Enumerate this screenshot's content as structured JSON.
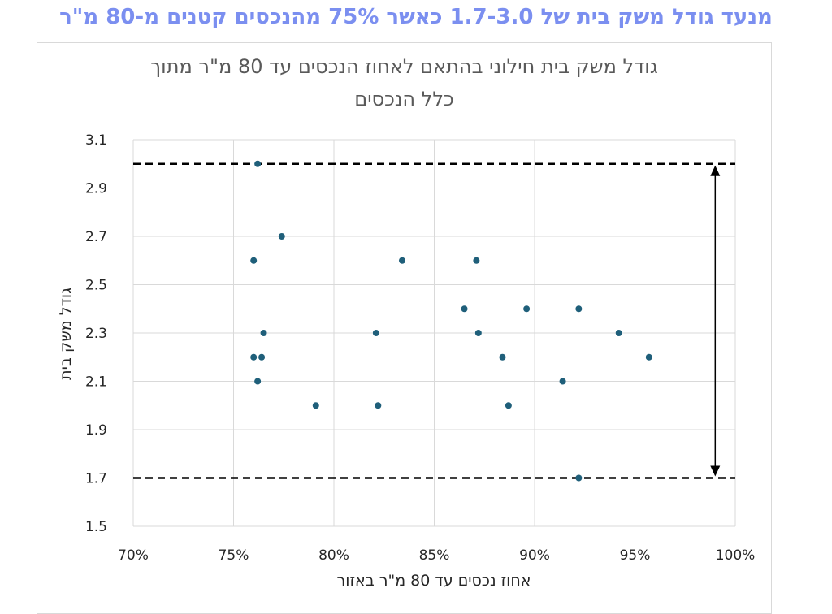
{
  "headline": "מנעד גודל משק בית של 1.7-3.0 כאשר 75% מהנכסים קטנים מ-80 מ\"ר",
  "chart_data": {
    "type": "scatter",
    "title_line1": "גודל משק בית חילוני בהתאם לאחוז הנכסים עד 80 מ\"ר מתוך",
    "title_line2": "כלל הנכסים",
    "xlabel": "אחוז נכסים עד 80 מ\"ר באזור",
    "ylabel": "גודל משק בית",
    "xlim": [
      0.7,
      1.0
    ],
    "ylim": [
      1.5,
      3.1
    ],
    "x_ticks": [
      0.7,
      0.75,
      0.8,
      0.85,
      0.9,
      0.95,
      1.0
    ],
    "x_tick_labels": [
      "70%",
      "75%",
      "80%",
      "85%",
      "90%",
      "95%",
      "100%"
    ],
    "y_ticks": [
      1.5,
      1.7,
      1.9,
      2.1,
      2.3,
      2.5,
      2.7,
      2.9,
      3.1
    ],
    "y_tick_labels": [
      "1.5",
      "1.7",
      "1.9",
      "2.1",
      "2.3",
      "2.5",
      "2.7",
      "2.9",
      "3.1"
    ],
    "grid": true,
    "point_color": "#1f5f7a",
    "reference_lines": [
      3.0,
      1.7
    ],
    "range_arrow": {
      "x": 0.99,
      "from": 3.0,
      "to": 1.7
    },
    "points": [
      {
        "x": 0.762,
        "y": 3.0
      },
      {
        "x": 0.774,
        "y": 2.7
      },
      {
        "x": 0.76,
        "y": 2.6
      },
      {
        "x": 0.834,
        "y": 2.6
      },
      {
        "x": 0.871,
        "y": 2.6
      },
      {
        "x": 0.865,
        "y": 2.4
      },
      {
        "x": 0.896,
        "y": 2.4
      },
      {
        "x": 0.922,
        "y": 2.4
      },
      {
        "x": 0.765,
        "y": 2.3
      },
      {
        "x": 0.821,
        "y": 2.3
      },
      {
        "x": 0.872,
        "y": 2.3
      },
      {
        "x": 0.942,
        "y": 2.3
      },
      {
        "x": 0.76,
        "y": 2.2
      },
      {
        "x": 0.764,
        "y": 2.2
      },
      {
        "x": 0.884,
        "y": 2.2
      },
      {
        "x": 0.957,
        "y": 2.2
      },
      {
        "x": 0.762,
        "y": 2.1
      },
      {
        "x": 0.914,
        "y": 2.1
      },
      {
        "x": 0.791,
        "y": 2.0
      },
      {
        "x": 0.822,
        "y": 2.0
      },
      {
        "x": 0.887,
        "y": 2.0
      },
      {
        "x": 0.922,
        "y": 1.7
      }
    ]
  }
}
